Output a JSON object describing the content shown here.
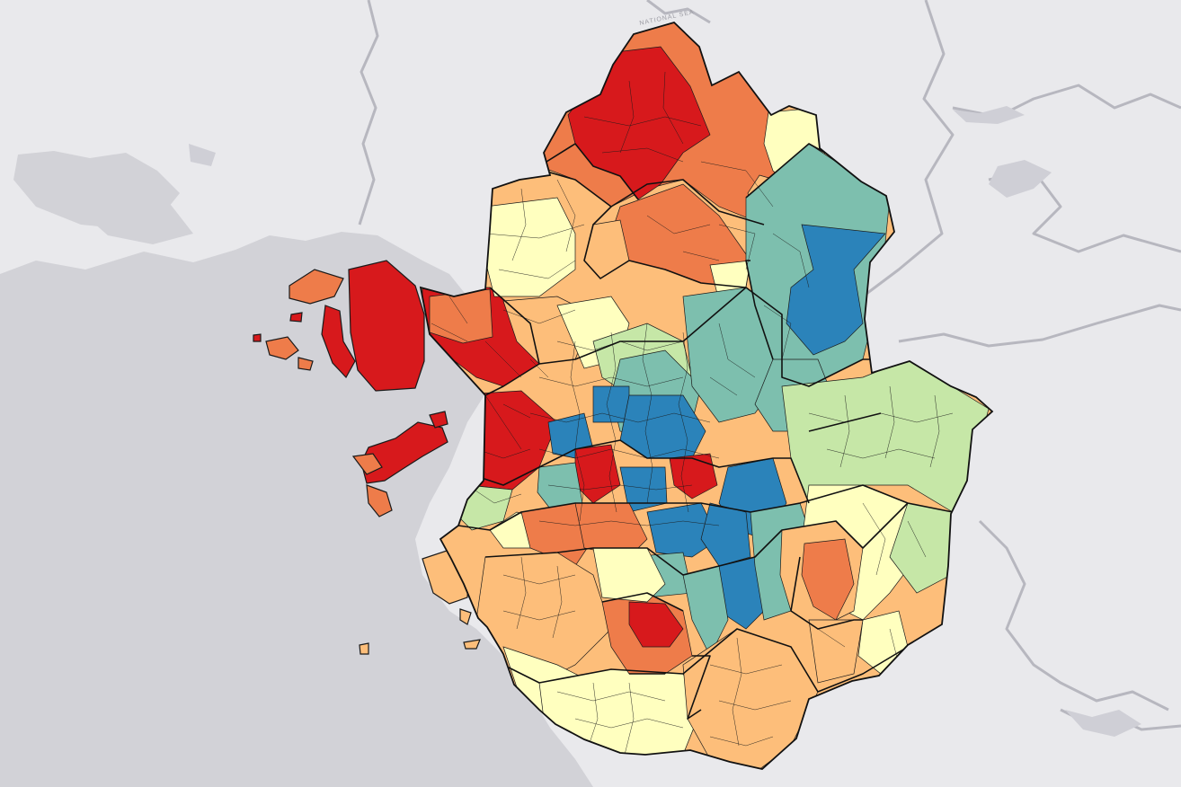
{
  "map": {
    "basemap_labels": [
      "NATIONAL SEA"
    ],
    "choropleth_palette": [
      "#d7191c",
      "#ee7c4a",
      "#fdbe7a",
      "#ffffbf",
      "#c6e7a7",
      "#7dbfae",
      "#2b83ba"
    ],
    "sea_color": "#d2d2d7",
    "land_color": "#e9e9ec",
    "river_color": "#b7b7bf",
    "boundary_color": "#1a1a1a"
  }
}
